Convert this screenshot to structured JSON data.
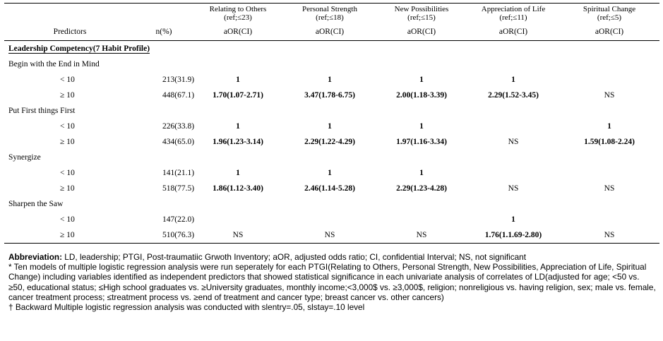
{
  "header": {
    "predictors": "Predictors",
    "n": "n(%)",
    "columns": [
      {
        "name": "Relating to Others",
        "ref": "(ref;≤23)",
        "stat": "aOR(CI)"
      },
      {
        "name": "Personal Strength",
        "ref": "(ref;≤18)",
        "stat": "aOR(CI)"
      },
      {
        "name": "New Possibilities",
        "ref": "(ref;≤15)",
        "stat": "aOR(CI)"
      },
      {
        "name": "Appreciation of Life",
        "ref": "(ref;≤11)",
        "stat": "aOR(CI)"
      },
      {
        "name": "Spiritual Change",
        "ref": "(ref;≤5)",
        "stat": "aOR(CI)"
      }
    ]
  },
  "section": "Leadership Competency(7 Habit Profile)",
  "groups": [
    {
      "name": "Begin with the End in Mind",
      "rows": [
        {
          "level": "< 10",
          "n": "213(31.9)",
          "values": [
            "1",
            "1",
            "1",
            "1",
            ""
          ]
        },
        {
          "level": "≥ 10",
          "n": "448(67.1)",
          "values": [
            "1.70(1.07-2.71)",
            "3.47(1.78-6.75)",
            "2.00(1.18-3.39)",
            "2.29(1.52-3.45)",
            "NS"
          ]
        }
      ]
    },
    {
      "name": "Put First things First",
      "rows": [
        {
          "level": "< 10",
          "n": "226(33.8)",
          "values": [
            "1",
            "1",
            "1",
            "",
            "1"
          ]
        },
        {
          "level": "≥ 10",
          "n": "434(65.0)",
          "values": [
            "1.96(1.23-3.14)",
            "2.29(1.22-4.29)",
            "1.97(1.16-3.34)",
            "NS",
            "1.59(1.08-2.24)"
          ]
        }
      ]
    },
    {
      "name": "Synergize",
      "rows": [
        {
          "level": "< 10",
          "n": "141(21.1)",
          "values": [
            "1",
            "1",
            "1",
            "",
            ""
          ]
        },
        {
          "level": "≥ 10",
          "n": "518(77.5)",
          "values": [
            "1.86(1.12-3.40)",
            "2.46(1.14-5.28)",
            "2.29(1.23-4.28)",
            "NS",
            "NS"
          ]
        }
      ]
    },
    {
      "name": "Sharpen the Saw",
      "rows": [
        {
          "level": "< 10",
          "n": "147(22.0)",
          "values": [
            "",
            "",
            "",
            "1",
            ""
          ]
        },
        {
          "level": "≥ 10",
          "n": "510(76.3)",
          "values": [
            "NS",
            "NS",
            "NS",
            "1.76(1.1.69-2.80)",
            "NS"
          ]
        }
      ]
    }
  ],
  "notes": {
    "abbrev_label": "Abbreviation:",
    "abbrev_text": " LD, leadership; PTGI, Post-traumatiic Grwoth Inventory; aOR, adjusted odds ratio; CI, confidential Interval; NS, not significant",
    "note1": "* Ten models of multiple logistic regression analysis were run seperately for each PTGI(Relating to Others, Personal Strength, New Possibilities, Appreciation of Life, Spiritual Change) including variables identified as independent predictors that showed statistical significance in each univariate analysis of correlates of LD(adjusted for age; <50 vs. ≥50, educational status; ≤High school graduates vs. ≥University graduates, monthly income;<3,000$ vs. ≥3,000$, religion; nonreligious vs. having religion, sex; male vs. female, cancer treatment process; ≤treatment process vs. ≥end of treatment and cancer type; breast cancer vs. other cancers)",
    "note2": "† Backward Multiple logistic regression analysis was conducted with slentry=.05, slstay=.10 level"
  }
}
